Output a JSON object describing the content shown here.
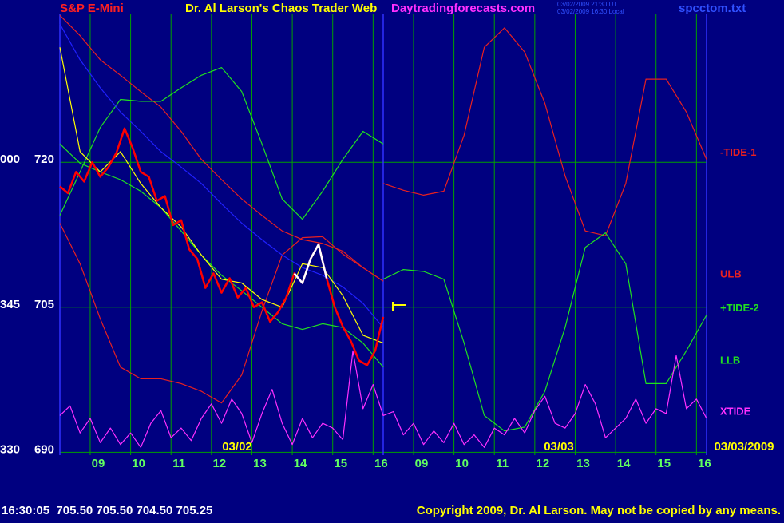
{
  "chart_data": {
    "type": "line",
    "title": "Dr. Al Larson's Chaos Trader Web",
    "symbol": "S&P E-Mini",
    "site": "Daytradingforecasts.com",
    "timestamps": [
      "03/02/2009 21:30 UT",
      "03/02/2009 16:30 Local"
    ],
    "file": "spcctom.txt",
    "date_labels": [
      "03/02",
      "03/03",
      "03/03/2009"
    ],
    "quote": "16:30:05  705.50 705.50 704.50 705.25",
    "copyright": "Copyright 2009, Dr. Al Larson. May not be copied by any means.",
    "xlim": [
      0.25,
      16.25
    ],
    "ylim": [
      689.7,
      735.3
    ],
    "yticks": [
      690,
      705,
      720
    ],
    "y_outer_labels": [
      "330",
      "345",
      "000"
    ],
    "xticks": [
      {
        "value": 1,
        "label": "09"
      },
      {
        "value": 2,
        "label": "10"
      },
      {
        "value": 3,
        "label": "11"
      },
      {
        "value": 4,
        "label": "12"
      },
      {
        "value": 5,
        "label": "13"
      },
      {
        "value": 6,
        "label": "14"
      },
      {
        "value": 7,
        "label": "15"
      },
      {
        "value": 8,
        "label": "16"
      },
      {
        "value": 9,
        "label": "09"
      },
      {
        "value": 10,
        "label": "10"
      },
      {
        "value": 11,
        "label": "11"
      },
      {
        "value": 12,
        "label": "12"
      },
      {
        "value": 13,
        "label": "13"
      },
      {
        "value": 14,
        "label": "14"
      },
      {
        "value": 15,
        "label": "15"
      },
      {
        "value": 16,
        "label": "16"
      }
    ],
    "grid": true,
    "grid_color": "#00a000",
    "x": [
      0.25,
      0.75,
      1.25,
      1.75,
      2.25,
      2.75,
      3.25,
      3.75,
      4.25,
      4.75,
      5.25,
      5.75,
      6.25,
      6.75,
      7.25,
      7.75,
      8.25,
      8.75,
      9.25,
      9.75,
      10.25,
      10.75,
      11.25,
      11.75,
      12.25,
      12.75,
      13.25,
      13.75,
      14.25,
      14.75,
      15.25,
      15.75,
      16.25
    ],
    "series": [
      {
        "name": "ULB",
        "color": "#e82020",
        "values": [
          735.2,
          733.1,
          730.6,
          729.0,
          727.3,
          725.7,
          723.2,
          720.3,
          718.2,
          716.2,
          714.5,
          712.9,
          712.0,
          711.6,
          710.8,
          709.1,
          707.7,
          null,
          null,
          null,
          null,
          null,
          null,
          null,
          null,
          null,
          null,
          null,
          null,
          null,
          null,
          null,
          null
        ]
      },
      {
        "color": "#e82020",
        "values": [
          713.7,
          709.5,
          703.8,
          698.8,
          697.6,
          697.6,
          697.1,
          696.3,
          695.1,
          698.0,
          704.6,
          710.4,
          712.2,
          712.3,
          710.5,
          709.1,
          707.7,
          null,
          null,
          null,
          null,
          null,
          null,
          null,
          null,
          null,
          null,
          null,
          null,
          null,
          null,
          null,
          null
        ]
      },
      {
        "name": "-TIDE-1",
        "color": "#e82020",
        "values": [
          null,
          null,
          null,
          null,
          null,
          null,
          null,
          null,
          null,
          null,
          null,
          null,
          null,
          null,
          null,
          null,
          717.8,
          717.1,
          716.6,
          717.0,
          722.8,
          731.9,
          733.9,
          731.4,
          726.1,
          718.6,
          712.9,
          712.4,
          717.8,
          728.6,
          728.6,
          725.2,
          720.3
        ]
      },
      {
        "color": "#20e020",
        "values": [
          714.5,
          719.0,
          723.6,
          726.5,
          726.3,
          726.3,
          727.7,
          729.0,
          729.8,
          727.3,
          721.9,
          716.2,
          714.1,
          717.0,
          720.3,
          723.2,
          721.9,
          null,
          null,
          null,
          null,
          null,
          null,
          null,
          null,
          null,
          null,
          null,
          null,
          null,
          null,
          null,
          null
        ]
      },
      {
        "name": "LLB",
        "color": "#20e020",
        "values": [
          721.9,
          719.9,
          719.0,
          718.2,
          717.0,
          715.3,
          712.9,
          710.4,
          708.3,
          706.7,
          705.0,
          703.3,
          702.7,
          703.3,
          702.9,
          701.3,
          698.8,
          null,
          null,
          null,
          null,
          null,
          null,
          null,
          null,
          null,
          null,
          null,
          null,
          null,
          null,
          null,
          null
        ]
      },
      {
        "name": "+TIDE-2",
        "color": "#20e020",
        "values": [
          null,
          null,
          null,
          null,
          null,
          null,
          null,
          null,
          null,
          null,
          null,
          null,
          null,
          null,
          null,
          null,
          707.9,
          708.9,
          708.7,
          707.9,
          701.3,
          693.8,
          692.2,
          692.6,
          696.3,
          702.9,
          711.2,
          712.7,
          709.5,
          697.1,
          697.1,
          700.5,
          704.2
        ]
      },
      {
        "color": "#2020ff",
        "values": [
          734.3,
          730.6,
          727.7,
          725.2,
          723.2,
          721.1,
          719.5,
          717.8,
          715.7,
          713.7,
          712.0,
          710.4,
          709.1,
          708.3,
          707.1,
          705.4,
          702.9,
          null,
          null,
          null,
          null,
          null,
          null,
          null,
          null,
          null,
          null,
          null,
          null,
          null,
          null,
          null,
          null
        ]
      },
      {
        "color": "#ffff00",
        "values": [
          731.9,
          721.1,
          719.0,
          721.1,
          717.8,
          715.3,
          713.3,
          710.4,
          707.9,
          707.5,
          705.8,
          705.0,
          709.5,
          709.1,
          706.2,
          702.1,
          701.3,
          null,
          null,
          null,
          null,
          null,
          null,
          null,
          null,
          null,
          null,
          null,
          null,
          null,
          null,
          null,
          null
        ]
      },
      {
        "color": "#ff0000",
        "width": 2.5,
        "x": [
          0.25,
          0.45,
          0.65,
          0.85,
          1.05,
          1.25,
          1.45,
          1.65,
          1.85,
          2.05,
          2.25,
          2.45,
          2.65,
          2.85,
          3.05,
          3.25,
          3.45,
          3.65,
          3.85,
          4.05,
          4.25,
          4.45,
          4.65,
          4.85,
          5.05,
          5.25,
          5.45,
          5.65,
          5.85,
          6.05,
          6.25,
          6.45,
          6.65,
          6.85,
          7.05,
          7.25,
          7.45,
          7.65,
          7.85,
          8.05,
          8.25
        ],
        "values": [
          717.5,
          716.8,
          719.0,
          718.0,
          720.0,
          718.5,
          719.5,
          721.0,
          723.5,
          721.5,
          719.0,
          718.5,
          716.0,
          716.5,
          713.5,
          714.0,
          711.0,
          710.0,
          707.0,
          708.5,
          706.5,
          708.0,
          706.0,
          707.0,
          705.0,
          705.5,
          703.5,
          704.5,
          706.0,
          708.5,
          707.5,
          710.0,
          711.5,
          708.0,
          705.0,
          703.0,
          701.5,
          699.5,
          699.0,
          700.5,
          704.0
        ]
      },
      {
        "color": "#ffffff",
        "width": 2.5,
        "x": [
          6.05,
          6.25,
          6.45,
          6.65,
          6.85
        ],
        "values": [
          708.5,
          707.5,
          710.0,
          711.5,
          708.0
        ]
      },
      {
        "name": "XTIDE",
        "color": "#ff30ff",
        "x": [
          0.25,
          0.5,
          0.75,
          1,
          1.25,
          1.5,
          1.75,
          2,
          2.25,
          2.5,
          2.75,
          3,
          3.25,
          3.5,
          3.75,
          4,
          4.25,
          4.5,
          4.75,
          5,
          5.25,
          5.5,
          5.75,
          6,
          6.25,
          6.5,
          6.75,
          7,
          7.25,
          7.5,
          7.75,
          8,
          8.25,
          8.5,
          8.75,
          9,
          9.25,
          9.5,
          9.75,
          10,
          10.25,
          10.5,
          10.75,
          11,
          11.25,
          11.5,
          11.75,
          12,
          12.25,
          12.5,
          12.75,
          13,
          13.25,
          13.5,
          13.75,
          14,
          14.25,
          14.5,
          14.75,
          15,
          15.25,
          15.5,
          15.75,
          16,
          16.25
        ],
        "values": [
          693.8,
          694.8,
          692.0,
          693.5,
          691.0,
          692.5,
          690.8,
          692.0,
          690.5,
          693.0,
          694.3,
          691.5,
          692.5,
          691.2,
          693.5,
          695.0,
          693.0,
          695.5,
          694.0,
          691.0,
          694.0,
          696.5,
          693.0,
          690.8,
          693.5,
          691.5,
          693.0,
          692.5,
          691.3,
          700.5,
          694.5,
          697.0,
          693.8,
          694.2,
          691.8,
          693.0,
          690.8,
          692.2,
          691.0,
          693.0,
          690.8,
          691.8,
          690.5,
          692.5,
          691.8,
          693.5,
          692.0,
          694.3,
          695.8,
          693.0,
          692.5,
          694.0,
          697.0,
          695.0,
          691.5,
          692.5,
          693.5,
          695.5,
          693.0,
          694.5,
          694.0,
          700.0,
          694.5,
          695.5,
          693.5
        ]
      }
    ]
  }
}
